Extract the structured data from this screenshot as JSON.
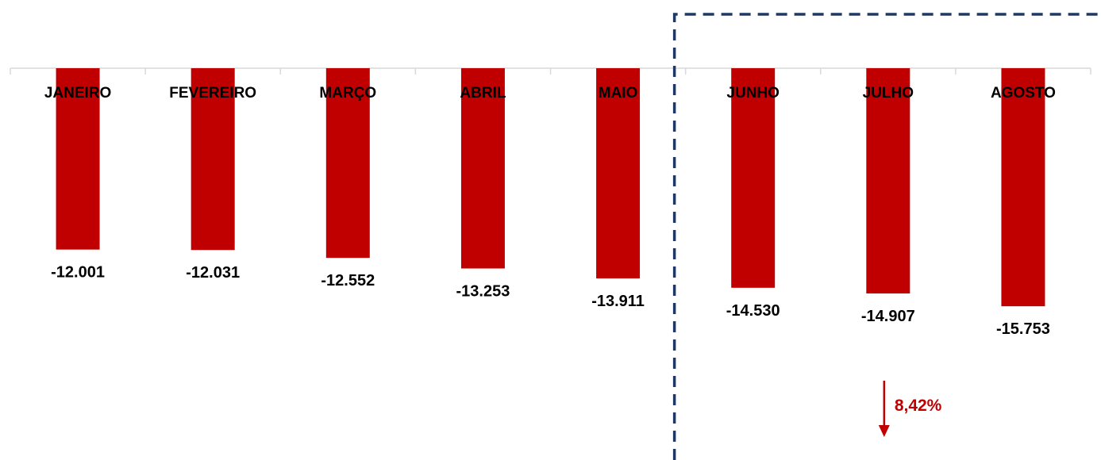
{
  "chart_data": {
    "type": "bar",
    "categories": [
      "JANEIRO",
      "FEVEREIRO",
      "MARÇO",
      "ABRIL",
      "MAIO",
      "JUNHO",
      "JULHO",
      "AGOSTO"
    ],
    "values": [
      -12001,
      -12031,
      -12552,
      -13253,
      -13911,
      -14530,
      -14907,
      -15753
    ],
    "value_labels": [
      "-12.001",
      "-12.031",
      "-12.552",
      "-13.253",
      "-13.911",
      "-14.530",
      "-14.907",
      "-15.753"
    ],
    "ylim": [
      -19000,
      0
    ],
    "grid": false,
    "bar_color": "#c00000",
    "axis_color": "#d9d9d9",
    "highlight": {
      "style": "dashed-box",
      "color": "#1f3864",
      "categories": [
        "JUNHO",
        "JULHO",
        "AGOSTO"
      ]
    },
    "annotation": {
      "text": "8,42%",
      "direction": "down",
      "color": "#c00000",
      "near_category": "JULHO"
    }
  }
}
